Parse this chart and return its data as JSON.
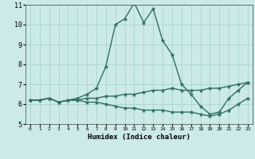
{
  "xlabel": "Humidex (Indice chaleur)",
  "ylabel": "",
  "xlim": [
    -0.5,
    23.5
  ],
  "ylim": [
    5,
    11
  ],
  "yticks": [
    5,
    6,
    7,
    8,
    9,
    10,
    11
  ],
  "xticks": [
    0,
    1,
    2,
    3,
    4,
    5,
    6,
    7,
    8,
    9,
    10,
    11,
    12,
    13,
    14,
    15,
    16,
    17,
    18,
    19,
    20,
    21,
    22,
    23
  ],
  "bg_color": "#cceae7",
  "grid_color": "#aad4d0",
  "line_color": "#2e6e65",
  "line_width": 1.0,
  "marker": "*",
  "marker_size": 3.5,
  "series": [
    [
      6.2,
      6.2,
      6.3,
      6.1,
      6.2,
      6.3,
      6.5,
      6.8,
      7.9,
      10.0,
      10.3,
      11.1,
      10.1,
      10.8,
      9.2,
      8.5,
      7.0,
      6.5,
      5.9,
      5.5,
      5.6,
      6.3,
      6.7,
      7.1
    ],
    [
      6.2,
      6.2,
      6.3,
      6.1,
      6.2,
      6.2,
      6.3,
      6.3,
      6.4,
      6.4,
      6.5,
      6.5,
      6.6,
      6.7,
      6.7,
      6.8,
      6.7,
      6.7,
      6.7,
      6.8,
      6.8,
      6.9,
      7.0,
      7.1
    ],
    [
      6.2,
      6.2,
      6.3,
      6.1,
      6.2,
      6.2,
      6.1,
      6.1,
      6.0,
      5.9,
      5.8,
      5.8,
      5.7,
      5.7,
      5.7,
      5.6,
      5.6,
      5.6,
      5.5,
      5.4,
      5.5,
      5.7,
      6.0,
      6.3
    ]
  ]
}
